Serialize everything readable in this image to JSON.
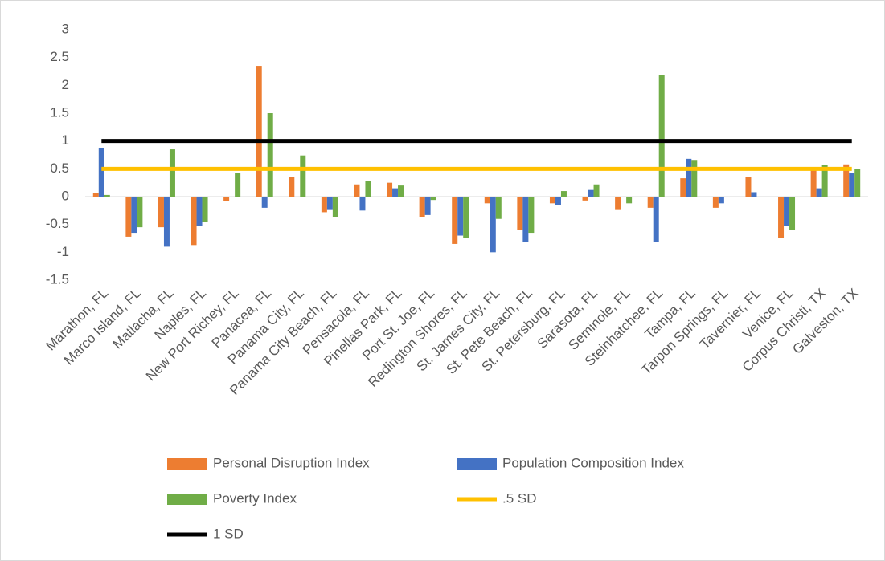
{
  "chart_data": {
    "type": "bar",
    "categories": [
      "Marathon, FL",
      "Marco Island, FL",
      "Matlacha, FL",
      "Naples, FL",
      "New Port Richey, FL",
      "Panacea, FL",
      "Panama City, FL",
      "Panama City Beach, FL",
      "Pensacola, FL",
      "Pinellas Park, FL",
      "Port St. Joe, FL",
      "Redington Shores, FL",
      "St. James City, FL",
      "St. Pete Beach, FL",
      "St. Petersburg, FL",
      "Sarasota, FL",
      "Seminole, FL",
      "Steinhatchee, FL",
      "Tampa, FL",
      "Tarpon Springs, FL",
      "Tavernier, FL",
      "Venice, FL",
      "Corpus Christi, TX",
      "Galveston, TX"
    ],
    "series": [
      {
        "name": "Personal Disruption Index",
        "color": "#ed7d31",
        "type": "bar",
        "values": [
          0.07,
          -0.72,
          -0.55,
          -0.87,
          -0.08,
          2.35,
          0.35,
          -0.28,
          0.22,
          0.25,
          -0.37,
          -0.85,
          -0.12,
          -0.6,
          -0.12,
          -0.07,
          -0.24,
          -0.2,
          0.33,
          -0.2,
          0.35,
          -0.74,
          0.5,
          0.58
        ]
      },
      {
        "name": "Population Composition Index",
        "color": "#4472c4",
        "type": "bar",
        "values": [
          0.88,
          -0.65,
          -0.9,
          -0.52,
          0,
          -0.2,
          0,
          -0.24,
          -0.25,
          0.15,
          -0.33,
          -0.7,
          -1.0,
          -0.82,
          -0.15,
          0.12,
          0,
          -0.82,
          0.68,
          -0.12,
          0.08,
          -0.52,
          0.15,
          0.42
        ]
      },
      {
        "name": "Poverty Index",
        "color": "#70ad47",
        "type": "bar",
        "values": [
          0.03,
          -0.55,
          0.85,
          -0.46,
          0.42,
          1.5,
          0.74,
          -0.37,
          0.28,
          0.2,
          -0.06,
          -0.74,
          -0.4,
          -0.65,
          0.1,
          0.22,
          -0.12,
          2.18,
          0.66,
          0,
          0,
          -0.6,
          0.57,
          0.5
        ]
      },
      {
        "name": ".5 SD",
        "color": "#ffc000",
        "type": "line",
        "values": [
          0.5,
          0.5,
          0.5,
          0.5,
          0.5,
          0.5,
          0.5,
          0.5,
          0.5,
          0.5,
          0.5,
          0.5,
          0.5,
          0.5,
          0.5,
          0.5,
          0.5,
          0.5,
          0.5,
          0.5,
          0.5,
          0.5,
          0.5,
          0.5
        ]
      },
      {
        "name": "1 SD",
        "color": "#000000",
        "type": "line",
        "values": [
          1,
          1,
          1,
          1,
          1,
          1,
          1,
          1,
          1,
          1,
          1,
          1,
          1,
          1,
          1,
          1,
          1,
          1,
          1,
          1,
          1,
          1,
          1,
          1
        ]
      }
    ],
    "ylim": [
      -1.5,
      3
    ],
    "yticks": [
      3,
      2.5,
      2,
      1.5,
      1,
      0.5,
      0,
      -0.5,
      -1,
      -1.5
    ],
    "grid": false
  }
}
